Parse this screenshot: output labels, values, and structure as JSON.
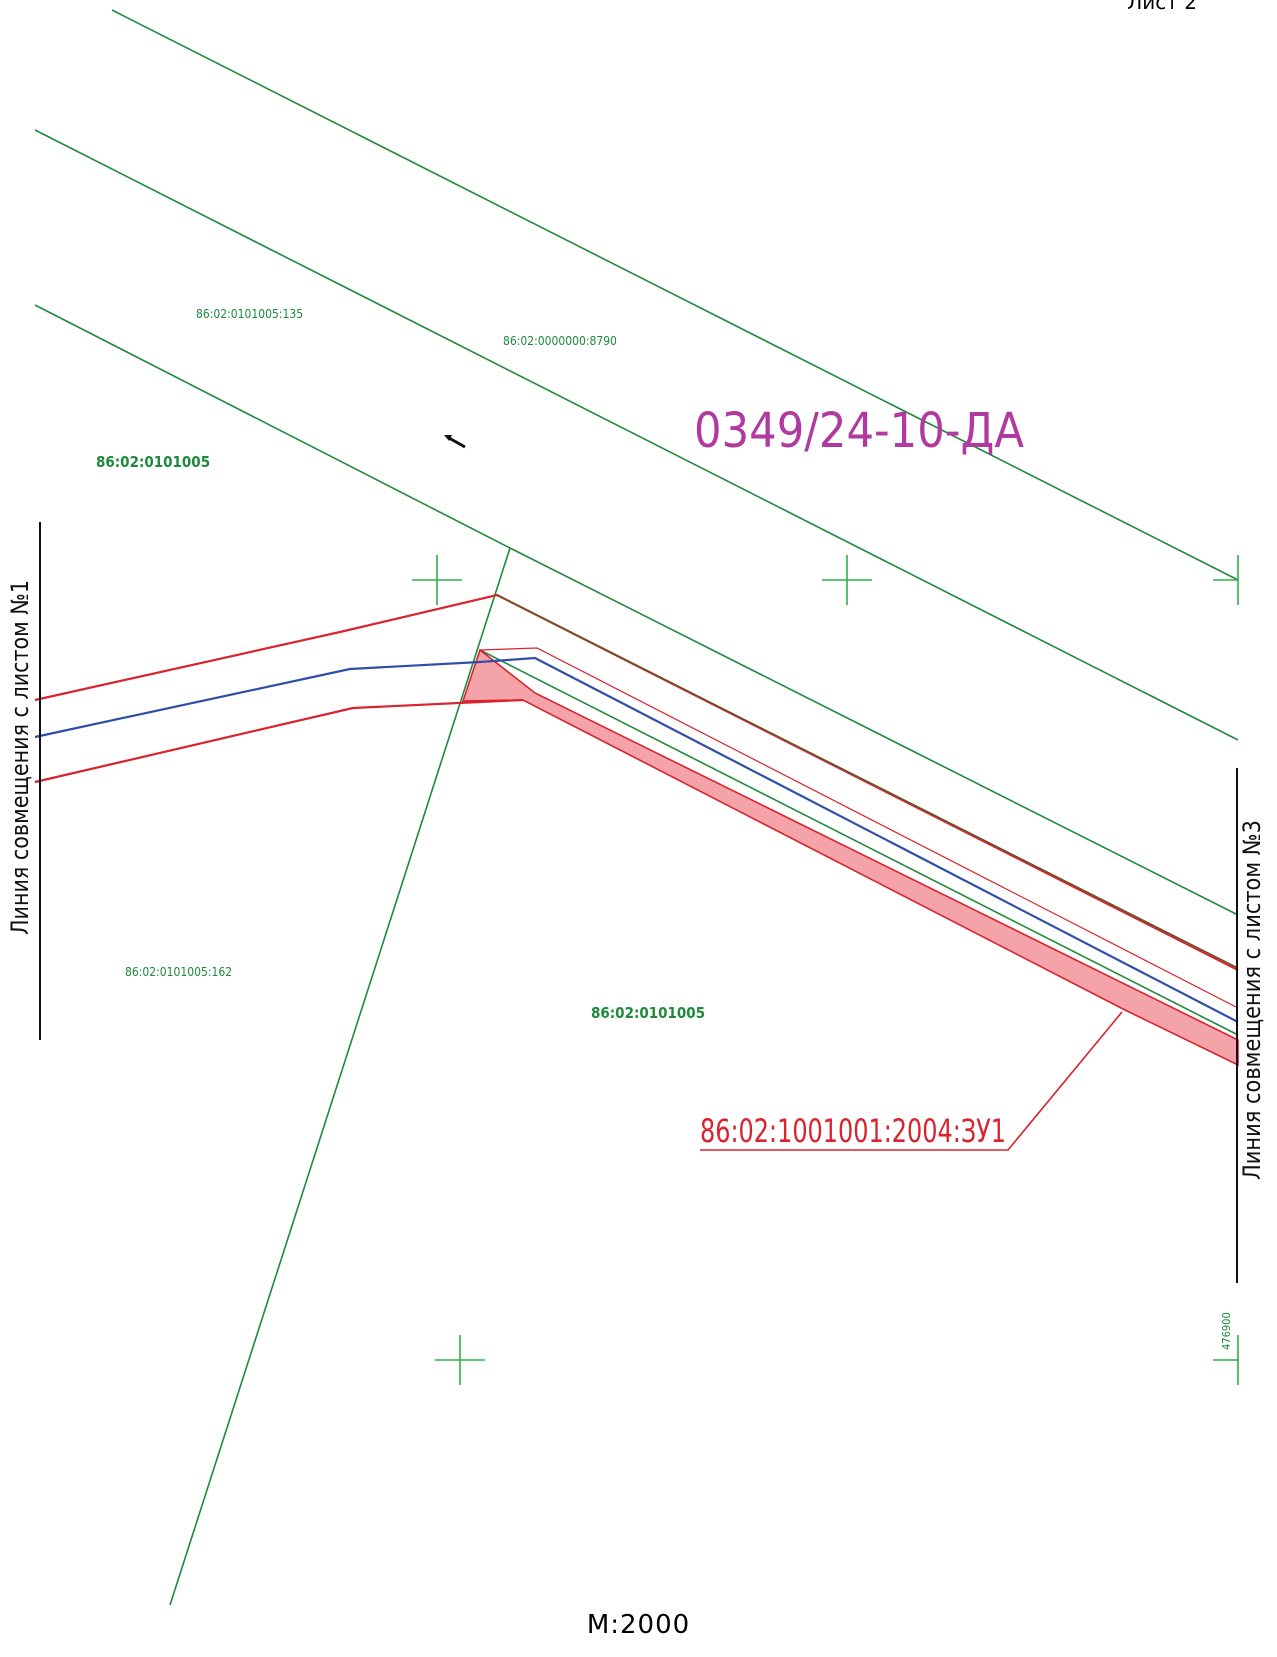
{
  "sheet": {
    "label": "Лист 2"
  },
  "scale": {
    "label": "М:2000"
  },
  "document": {
    "code": "0349/24-10-ДА"
  },
  "parcels": {
    "p135": "86:02:0101005:135",
    "p8790": "86:02:0000000:8790",
    "p162": "86:02:0101005:162",
    "quarter_top": "86:02:0101005",
    "quarter_bottom": "86:02:0101005"
  },
  "new_parcel": {
    "label": "86:02:1001001:2004:ЗУ1"
  },
  "match_lines": {
    "left": "Линия совмещения с листом №1",
    "right": "Линия совмещения с листом №3"
  },
  "coordinate": {
    "label": "476900"
  },
  "colors": {
    "boundary_green": "#1e8a3c",
    "red_line": "#d9232e",
    "blue_line": "#2e4ea8",
    "parcel_fill": "#f4a4a8",
    "code_magenta": "#b03aa0",
    "grid_cross": "#2cb24a"
  }
}
